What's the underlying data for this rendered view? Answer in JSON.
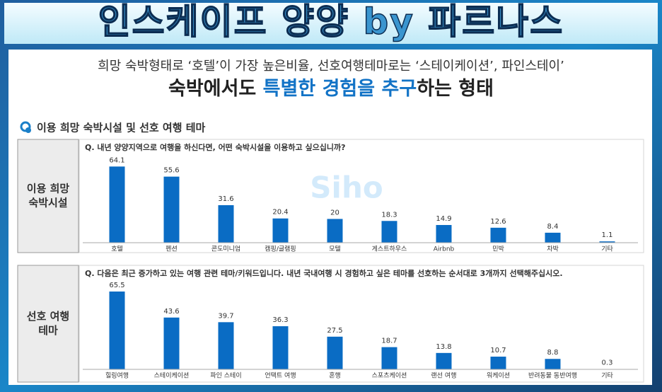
{
  "header": {
    "banner": "인스케이프 양양 by 파르나스",
    "subtitle": "희망 숙박형태로 ‘호텔’이 가장 높은비율, 선호여행테마로는 ‘스테이케이션’, 파인스테이’",
    "headline": [
      "숙박에서도 ",
      "특별한 경험을 추구",
      "하는 형태"
    ],
    "section_title": "이용 희망 숙박시설 및 선호 여행 테마",
    "watermark": "Siho"
  },
  "chart_data": [
    {
      "type": "bar",
      "row_label": [
        "이용 희망",
        "숙박시설"
      ],
      "title": "Q. 내년 양양지역으로 여행을 하신다면, 어떤 숙박시설을 이용하고 싶으십니까?",
      "categories": [
        "호텔",
        "펜션",
        "콘도미니엄",
        "캠핑/글램핑",
        "모텔",
        "게스트하우스",
        "Airbnb",
        "민박",
        "차박",
        "기타"
      ],
      "values": [
        64.1,
        55.6,
        31.6,
        20.4,
        20,
        18.3,
        14.9,
        12.6,
        8.4,
        1.1
      ],
      "color": "#0a6cc4"
    },
    {
      "type": "bar",
      "row_label": [
        "선호 여행",
        "테마"
      ],
      "title": "Q. 다음은 최근 증가하고 있는 여행 관련 테마/키워드입니다. 내년 국내여행 시 경험하고 싶은 테마를 선호하는 순서대로 3개까지 선택해주십시오.",
      "categories": [
        "힐링여행",
        "스테이케이션",
        "파인 스테이",
        "언택트 여행",
        "혼행",
        "스포츠케이션",
        "랜선 여행",
        "워케이션",
        "반려동물 동반여행",
        "기타"
      ],
      "values": [
        65.5,
        43.6,
        39.7,
        36.3,
        27.5,
        18.7,
        13.8,
        10.7,
        8.8,
        0.3
      ],
      "color": "#0a6cc4"
    }
  ]
}
